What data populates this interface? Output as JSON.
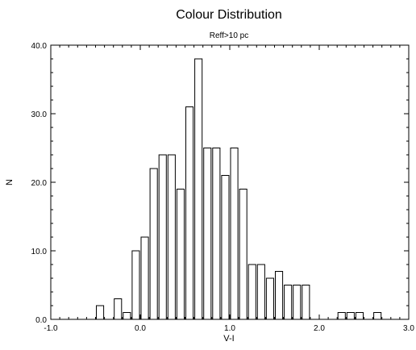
{
  "chart_data": {
    "type": "bar",
    "title": "Colour Distribution",
    "subtitle": "Reff>10 pc",
    "xlabel": "V-I",
    "ylabel": "N",
    "xlim": [
      -1.0,
      3.0
    ],
    "ylim": [
      0,
      40
    ],
    "x_ticks": [
      -1.0,
      0.0,
      1.0,
      2.0,
      3.0
    ],
    "x_tick_labels": [
      "-1.0",
      "0.0",
      "1.0",
      "2.0",
      "3.0"
    ],
    "y_ticks": [
      0,
      10,
      20,
      30,
      40
    ],
    "y_tick_labels": [
      "0.0",
      "10.0",
      "20.0",
      "30.0",
      "40.0"
    ],
    "bin_width": 0.1,
    "bar_fill": "#ffffff",
    "bar_stroke": "#000000",
    "bins": [
      {
        "x": -0.5,
        "y": 2
      },
      {
        "x": -0.3,
        "y": 3
      },
      {
        "x": -0.2,
        "y": 1
      },
      {
        "x": -0.1,
        "y": 10
      },
      {
        "x": 0.0,
        "y": 12
      },
      {
        "x": 0.1,
        "y": 22
      },
      {
        "x": 0.2,
        "y": 24
      },
      {
        "x": 0.3,
        "y": 24
      },
      {
        "x": 0.4,
        "y": 19
      },
      {
        "x": 0.5,
        "y": 31
      },
      {
        "x": 0.6,
        "y": 38
      },
      {
        "x": 0.7,
        "y": 25
      },
      {
        "x": 0.8,
        "y": 25
      },
      {
        "x": 0.9,
        "y": 21
      },
      {
        "x": 1.0,
        "y": 25
      },
      {
        "x": 1.1,
        "y": 19
      },
      {
        "x": 1.2,
        "y": 8
      },
      {
        "x": 1.3,
        "y": 8
      },
      {
        "x": 1.4,
        "y": 6
      },
      {
        "x": 1.5,
        "y": 7
      },
      {
        "x": 1.6,
        "y": 5
      },
      {
        "x": 1.7,
        "y": 5
      },
      {
        "x": 1.8,
        "y": 5
      },
      {
        "x": 2.2,
        "y": 1
      },
      {
        "x": 2.3,
        "y": 1
      },
      {
        "x": 2.4,
        "y": 1
      },
      {
        "x": 2.6,
        "y": 1
      }
    ],
    "grid": false,
    "legend": "none"
  }
}
